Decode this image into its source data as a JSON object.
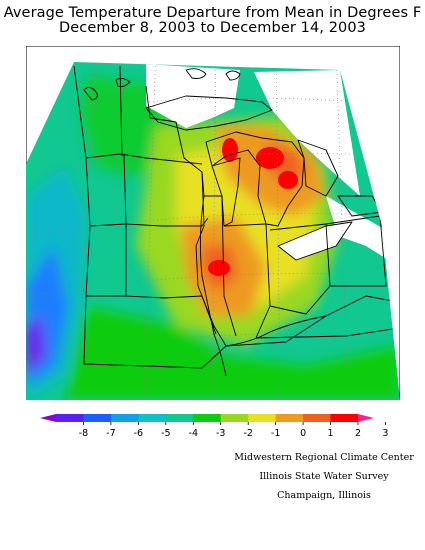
{
  "title": {
    "line1": "Average Temperature Departure from Mean in Degrees F",
    "line2": "December 8, 2003 to December 14, 2003"
  },
  "legend": {
    "ticks": [
      "-8",
      "-7",
      "-6",
      "-5",
      "-4",
      "-3",
      "-2",
      "-1",
      "0",
      "1",
      "2",
      "3"
    ],
    "colors": [
      "#8800dd",
      "#5a22ee",
      "#1e5eff",
      "#10a0e8",
      "#10c0c8",
      "#10c890",
      "#10cc10",
      "#9ad820",
      "#e8e020",
      "#ee9a20",
      "#f06020",
      "#ff0000",
      "#ff2090"
    ]
  },
  "map": {
    "shading": {
      "departure_range_degF": [
        -8,
        3
      ],
      "warmest_area": "Illinois and the Upper Michigan / Lake Michigan shore",
      "coolest_area": "Kansas / western edge"
    },
    "colors": {
      "ocean_nodata": "#ffffff",
      "state_lines": "#000000",
      "graticule": "#808080"
    }
  },
  "credit": {
    "line1": "Midwestern Regional Climate Center",
    "line2": "Illinois State Water Survey",
    "line3": "Champaign, Illinois"
  }
}
